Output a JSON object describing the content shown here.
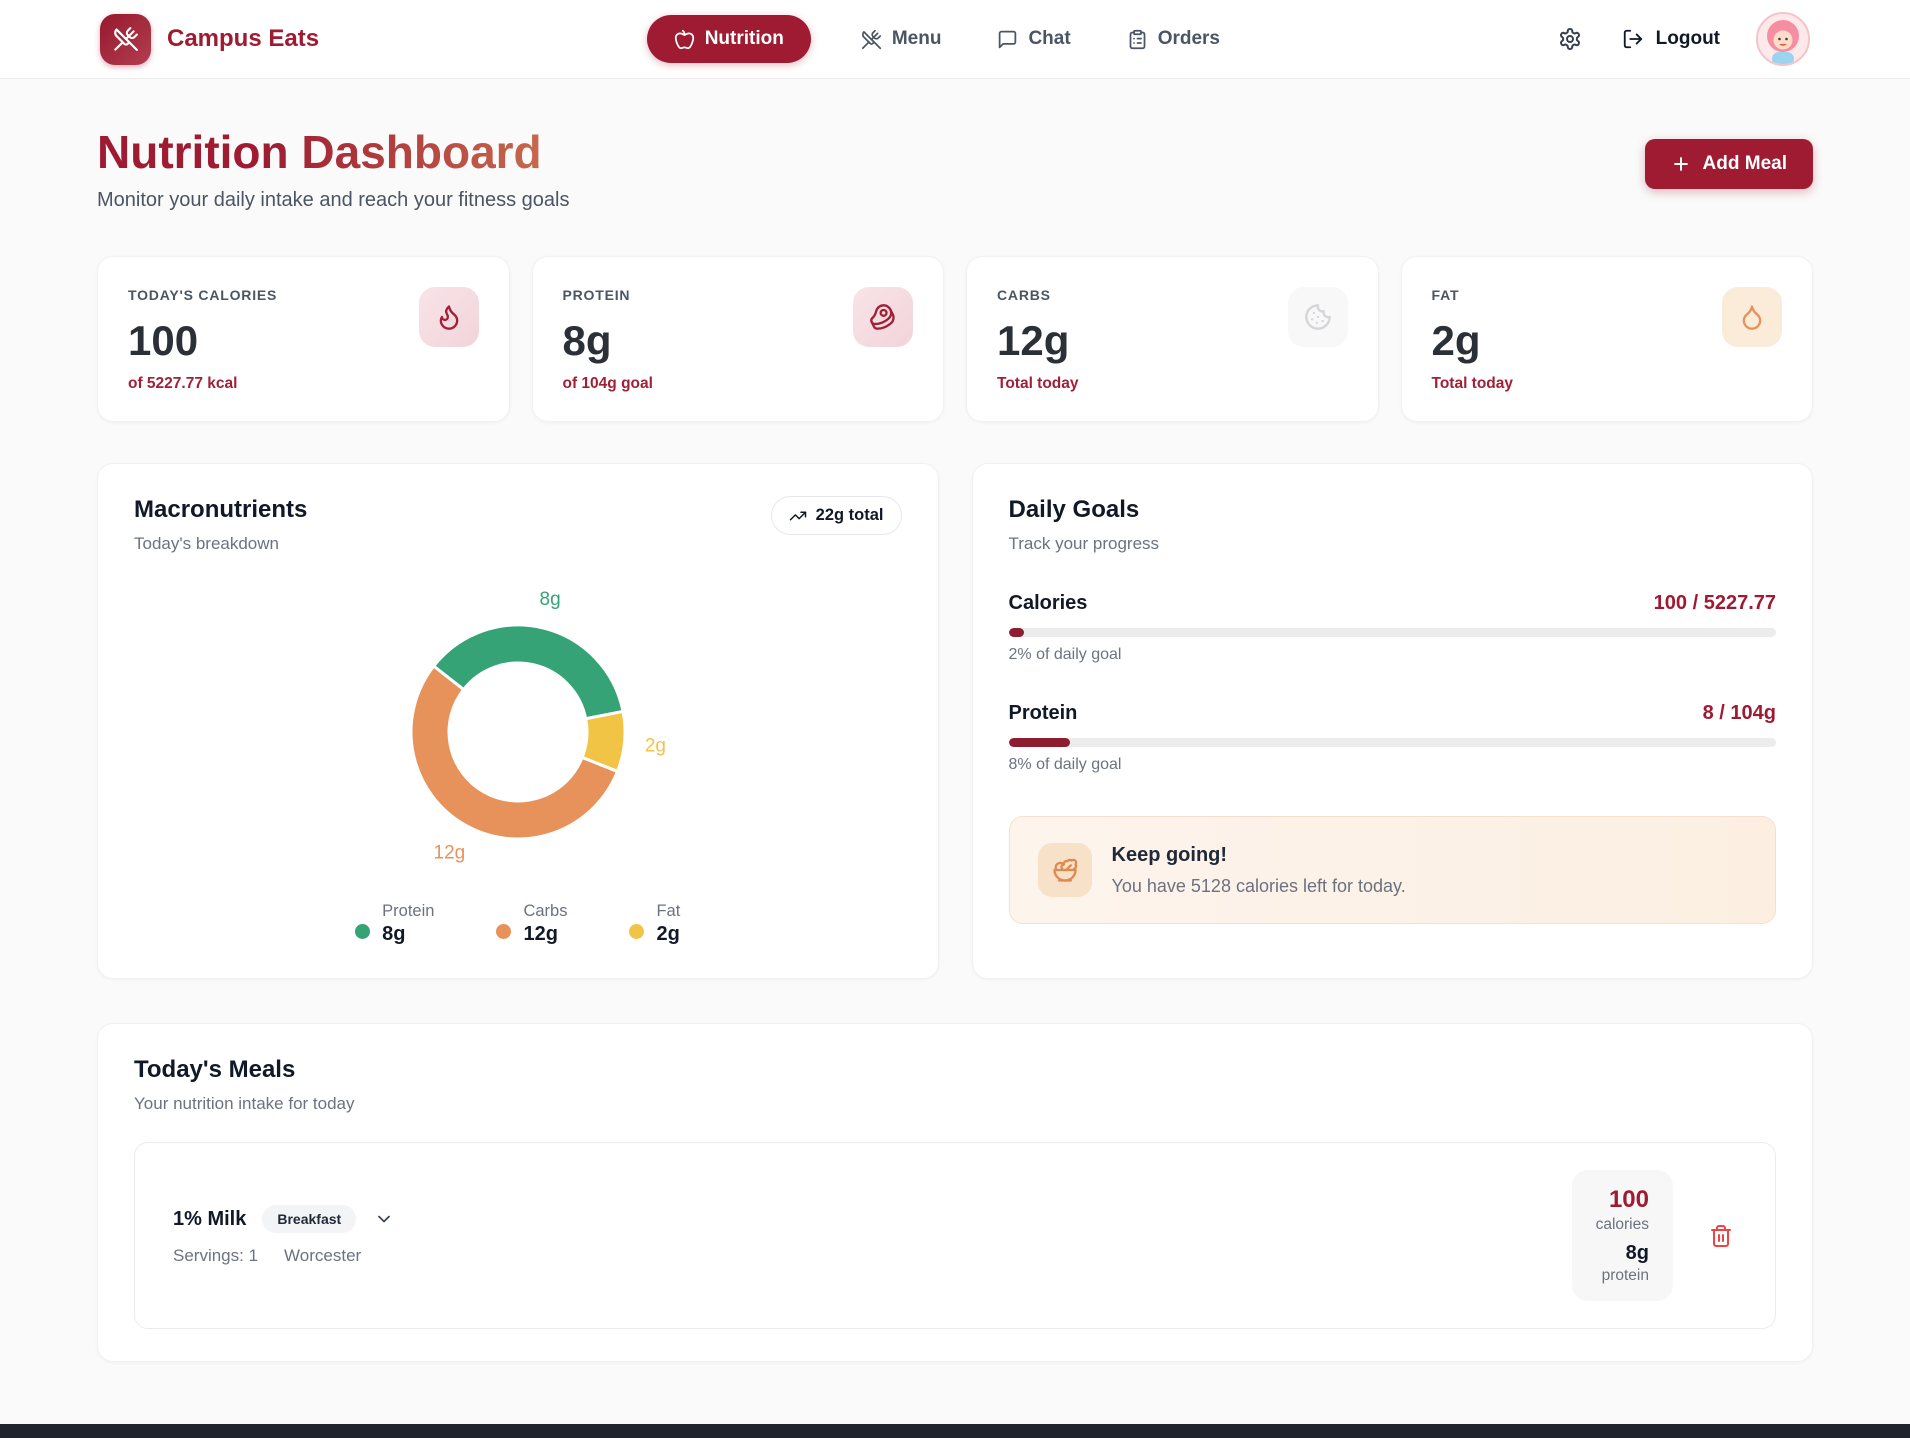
{
  "header": {
    "brand": "Campus Eats",
    "nav": [
      {
        "label": "Nutrition",
        "active": true
      },
      {
        "label": "Menu",
        "active": false
      },
      {
        "label": "Chat",
        "active": false
      },
      {
        "label": "Orders",
        "active": false
      }
    ],
    "logout_label": "Logout"
  },
  "page": {
    "title": "Nutrition Dashboard",
    "subtitle": "Monitor your daily intake and reach your fitness goals",
    "add_meal_label": "Add Meal"
  },
  "stats": [
    {
      "label": "TODAY'S CALORIES",
      "value": "100",
      "sub": "of 5227.77 kcal",
      "icon": "flame-icon"
    },
    {
      "label": "PROTEIN",
      "value": "8g",
      "sub": "of 104g goal",
      "icon": "steak-icon"
    },
    {
      "label": "CARBS",
      "value": "12g",
      "sub": "Total today",
      "icon": "cookie-icon"
    },
    {
      "label": "FAT",
      "value": "2g",
      "sub": "Total today",
      "icon": "droplet-icon"
    }
  ],
  "macros": {
    "title": "Macronutrients",
    "subtitle": "Today's breakdown",
    "badge": "22g total",
    "legend": [
      {
        "label": "Protein",
        "value": "8g",
        "color": "#36A376"
      },
      {
        "label": "Carbs",
        "value": "12g",
        "color": "#E8925B"
      },
      {
        "label": "Fat",
        "value": "2g",
        "color": "#F2C445"
      }
    ]
  },
  "chart_data": {
    "type": "pie",
    "subtype": "donut",
    "title": "Macronutrients — Today's breakdown",
    "total_label": "22g total",
    "start_angle_deg": -52,
    "segments": [
      {
        "name": "Protein",
        "value": 8,
        "display": "8g",
        "color": "#36A376"
      },
      {
        "name": "Fat",
        "value": 2,
        "display": "2g",
        "color": "#F2C445"
      },
      {
        "name": "Carbs",
        "value": 12,
        "display": "12g",
        "color": "#E8925B"
      }
    ],
    "legend_order": [
      "Protein",
      "Carbs",
      "Fat"
    ],
    "units": "g",
    "total": 22
  },
  "goals": {
    "title": "Daily Goals",
    "subtitle": "Track your progress",
    "rows": [
      {
        "label": "Calories",
        "value": "100 / 5227.77",
        "percent": 2,
        "caption": "2% of daily goal"
      },
      {
        "label": "Protein",
        "value": "8 / 104g",
        "percent": 8,
        "caption": "8% of daily goal"
      }
    ],
    "tip": {
      "title": "Keep going!",
      "text": "You have 5128 calories left for today."
    }
  },
  "meals": {
    "title": "Today's Meals",
    "subtitle": "Your nutrition intake for today",
    "items": [
      {
        "name": "1% Milk",
        "badge": "Breakfast",
        "servings": "Servings: 1",
        "location": "Worcester",
        "calories": "100",
        "calories_label": "calories",
        "protein": "8g",
        "protein_label": "protein"
      }
    ]
  },
  "colors": {
    "primary": "#9E1B32",
    "title_gradient_end": "#C66A4D",
    "protein": "#36A376",
    "carbs": "#E8925B",
    "fat": "#F2C445",
    "progress_fill": "#8E1D30",
    "trash": "#EF4444"
  }
}
